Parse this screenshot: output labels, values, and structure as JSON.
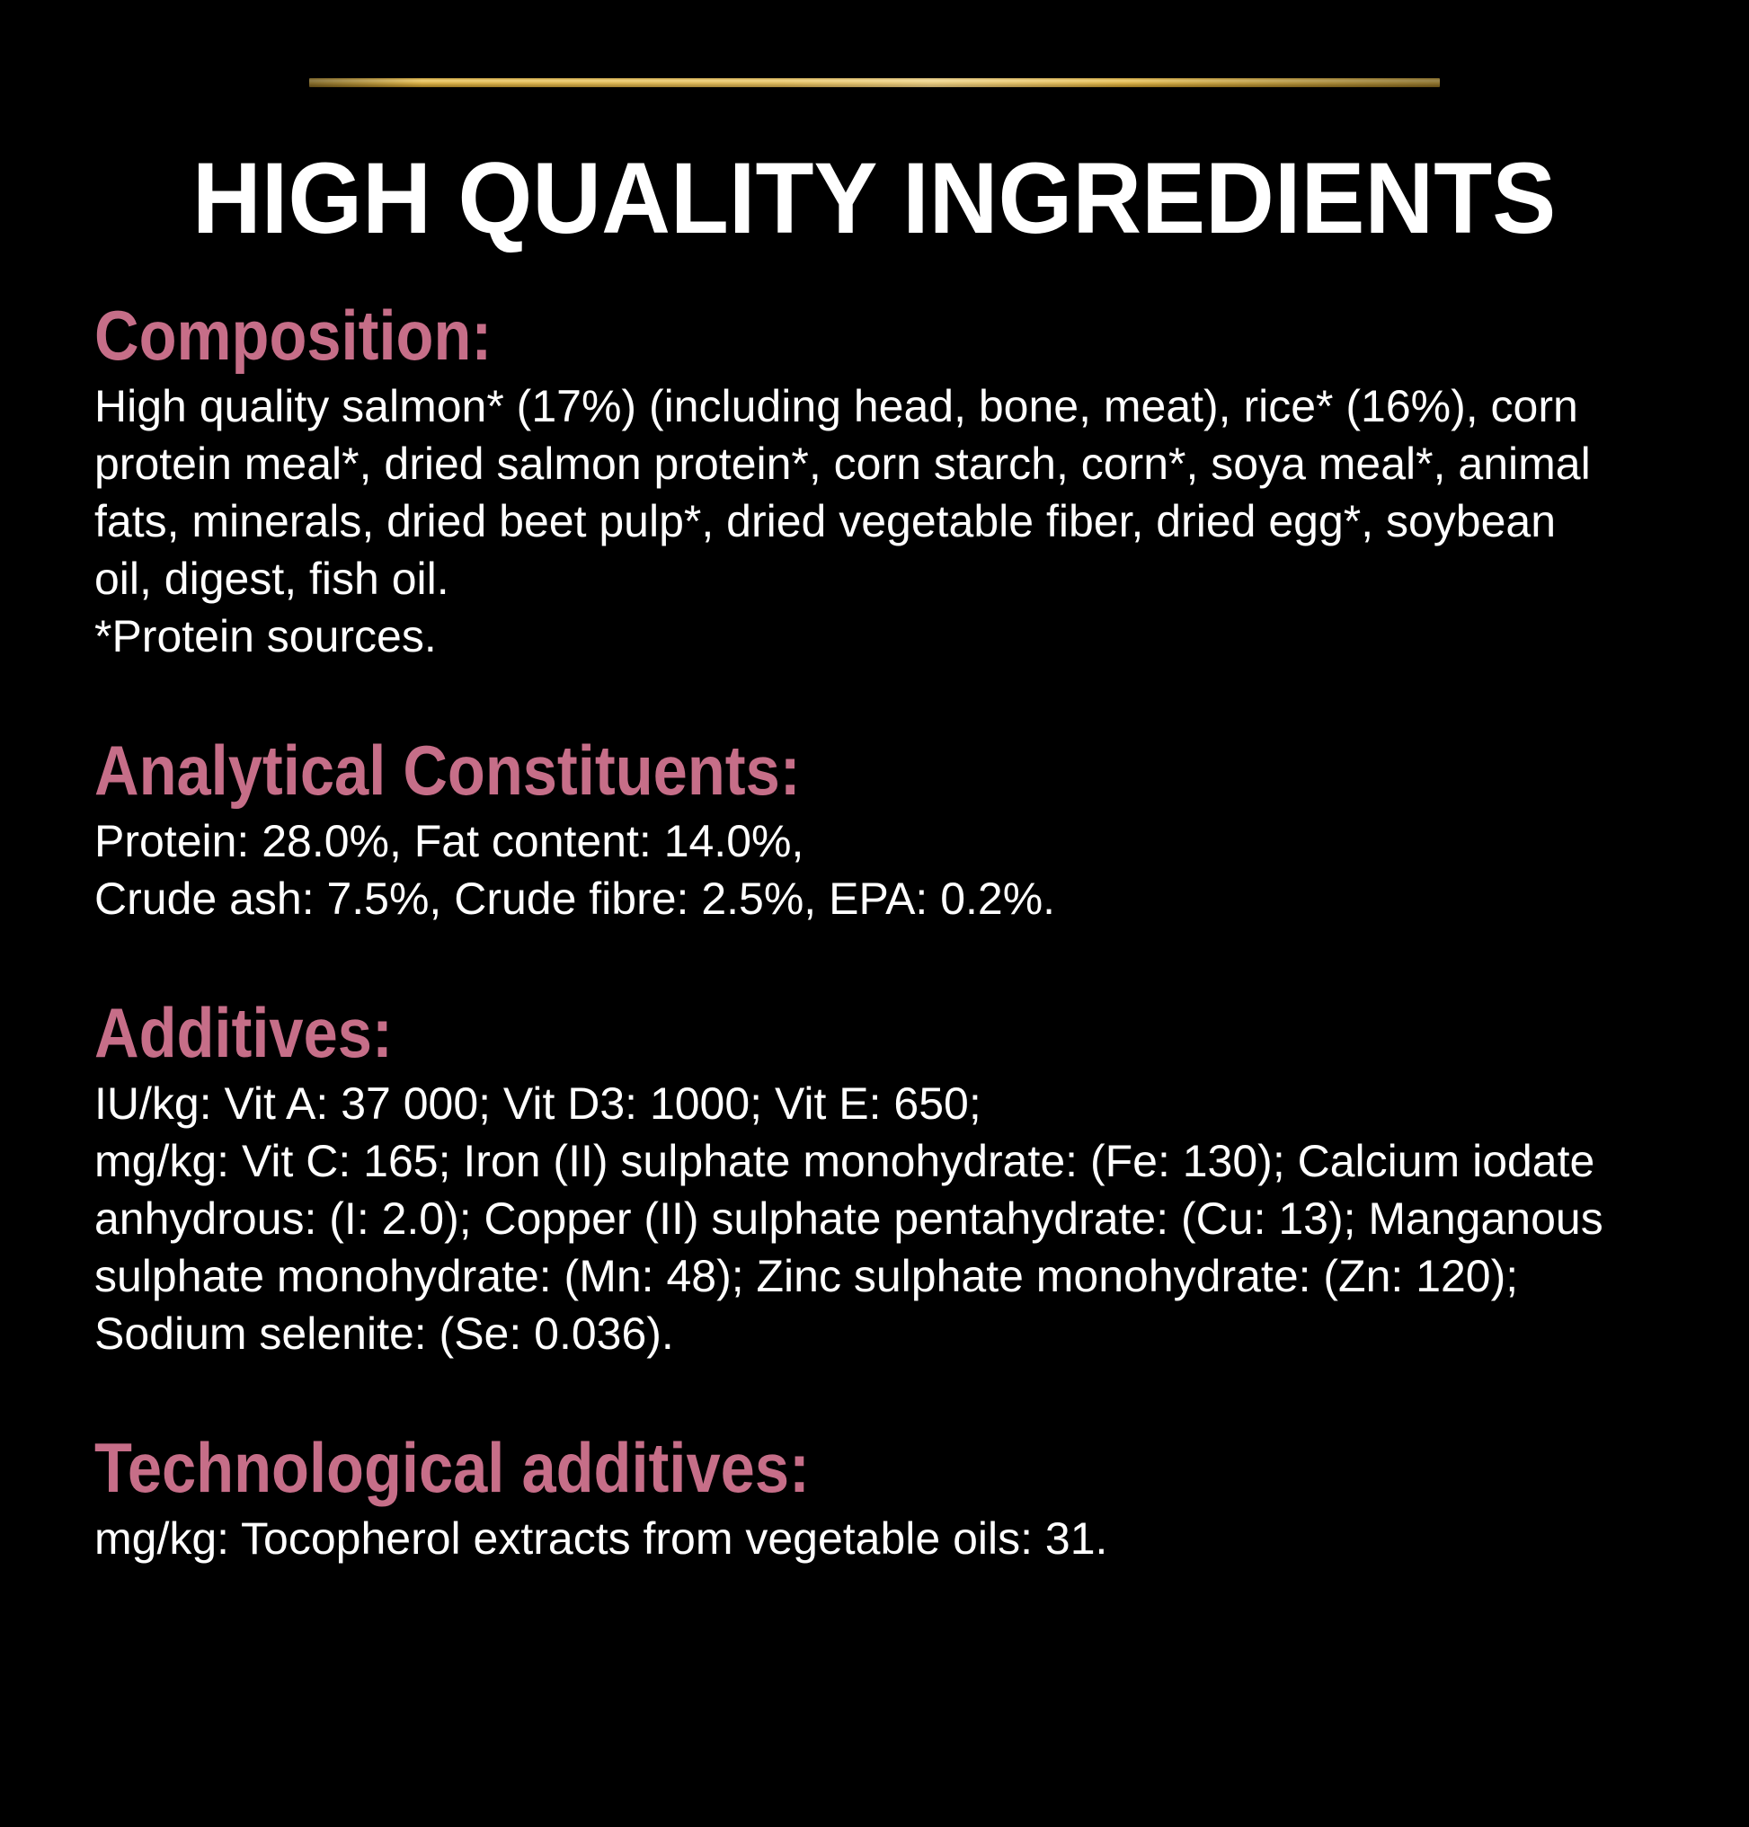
{
  "colors": {
    "background": "#000000",
    "heading": "#c66e88",
    "body_text": "#ffffff",
    "divider_gold": "#d9b14a"
  },
  "title": "HIGH QUALITY INGREDIENTS",
  "sections": [
    {
      "id": "composition",
      "heading": "Composition:",
      "lines": [
        "High quality salmon* (17%) (including head, bone, meat), rice* (16%), corn",
        "protein meal*, dried salmon protein*, corn starch, corn*, soya meal*, animal",
        "fats, minerals, dried beet pulp*, dried vegetable fiber, dried egg*, soybean",
        "oil, digest, fish oil.",
        "*Protein sources."
      ]
    },
    {
      "id": "analytical-constituents",
      "heading": "Analytical Constituents:",
      "lines": [
        "Protein: 28.0%, Fat content: 14.0%,",
        "Crude ash: 7.5%, Crude fibre: 2.5%, EPA: 0.2%."
      ]
    },
    {
      "id": "additives",
      "heading": "Additives:",
      "lines": [
        "IU/kg: Vit A: 37 000; Vit D3: 1000; Vit E: 650;",
        "mg/kg: Vit C: 165; Iron (II) sulphate monohydrate: (Fe: 130); Calcium iodate",
        "anhydrous: (I: 2.0); Copper (II) sulphate pentahydrate: (Cu: 13); Manganous",
        "sulphate monohydrate: (Mn: 48); Zinc sulphate monohydrate: (Zn: 120);",
        "Sodium selenite: (Se: 0.036)."
      ]
    },
    {
      "id": "technological-additives",
      "heading": "Technological additives:",
      "lines": [
        "mg/kg: Tocopherol extracts from vegetable oils: 31."
      ]
    }
  ]
}
